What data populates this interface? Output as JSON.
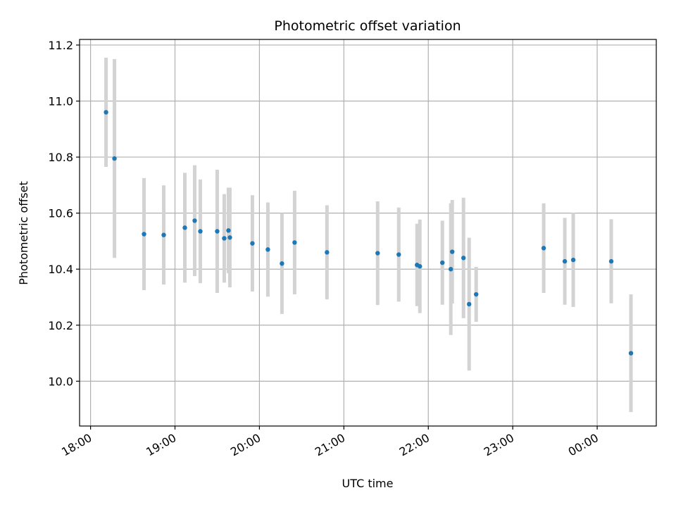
{
  "chart_data": {
    "type": "scatter",
    "title": "Photometric offset variation",
    "xlabel": "UTC time",
    "ylabel": "Photometric offset",
    "x_ticks": [
      "18:00",
      "19:00",
      "20:00",
      "21:00",
      "22:00",
      "23:00",
      "00:00"
    ],
    "x_tick_hours": [
      18,
      19,
      20,
      21,
      22,
      23,
      24
    ],
    "y_ticks": [
      "10.0",
      "10.2",
      "10.4",
      "10.6",
      "10.8",
      "11.0",
      "11.2"
    ],
    "y_tick_values": [
      10.0,
      10.2,
      10.4,
      10.6,
      10.8,
      11.0,
      11.2
    ],
    "xlim_hours": [
      17.87,
      24.7
    ],
    "ylim": [
      9.84,
      11.22
    ],
    "grid": true,
    "colors": {
      "point": "#1f77b4",
      "error_bar": "#d3d3d3",
      "grid": "#b0b0b0"
    },
    "series": [
      {
        "points": [
          {
            "time": "18:11",
            "y": 10.96,
            "err": 0.195
          },
          {
            "time": "18:17",
            "y": 10.795,
            "err": 0.355
          },
          {
            "time": "18:38",
            "y": 10.525,
            "err": 0.2
          },
          {
            "time": "18:52",
            "y": 10.522,
            "err": 0.177
          },
          {
            "time": "19:07",
            "y": 10.548,
            "err": 0.196
          },
          {
            "time": "19:14",
            "y": 10.573,
            "err": 0.198
          },
          {
            "time": "19:18",
            "y": 10.535,
            "err": 0.185
          },
          {
            "time": "19:30",
            "y": 10.535,
            "err": 0.22
          },
          {
            "time": "19:35",
            "y": 10.51,
            "err": 0.158
          },
          {
            "time": "19:38",
            "y": 10.538,
            "err": 0.153
          },
          {
            "time": "19:39",
            "y": 10.513,
            "err": 0.178
          },
          {
            "time": "19:55",
            "y": 10.492,
            "err": 0.172
          },
          {
            "time": "20:06",
            "y": 10.47,
            "err": 0.168
          },
          {
            "time": "20:16",
            "y": 10.42,
            "err": 0.18
          },
          {
            "time": "20:25",
            "y": 10.495,
            "err": 0.185
          },
          {
            "time": "20:48",
            "y": 10.46,
            "err": 0.168
          },
          {
            "time": "21:24",
            "y": 10.457,
            "err": 0.185
          },
          {
            "time": "21:39",
            "y": 10.452,
            "err": 0.168
          },
          {
            "time": "21:52",
            "y": 10.415,
            "err": 0.147
          },
          {
            "time": "21:54",
            "y": 10.41,
            "err": 0.167
          },
          {
            "time": "22:10",
            "y": 10.423,
            "err": 0.15
          },
          {
            "time": "22:16",
            "y": 10.4,
            "err": 0.235
          },
          {
            "time": "22:17",
            "y": 10.462,
            "err": 0.185
          },
          {
            "time": "22:25",
            "y": 10.44,
            "err": 0.215
          },
          {
            "time": "22:29",
            "y": 10.275,
            "err": 0.237
          },
          {
            "time": "22:34",
            "y": 10.31,
            "err": 0.098
          },
          {
            "time": "23:22",
            "y": 10.475,
            "err": 0.16
          },
          {
            "time": "23:37",
            "y": 10.428,
            "err": 0.155
          },
          {
            "time": "23:43",
            "y": 10.433,
            "err": 0.168
          },
          {
            "time": "00:10",
            "y": 10.428,
            "err": 0.15
          },
          {
            "time": "00:24",
            "y": 10.1,
            "err": 0.21
          }
        ]
      }
    ]
  }
}
